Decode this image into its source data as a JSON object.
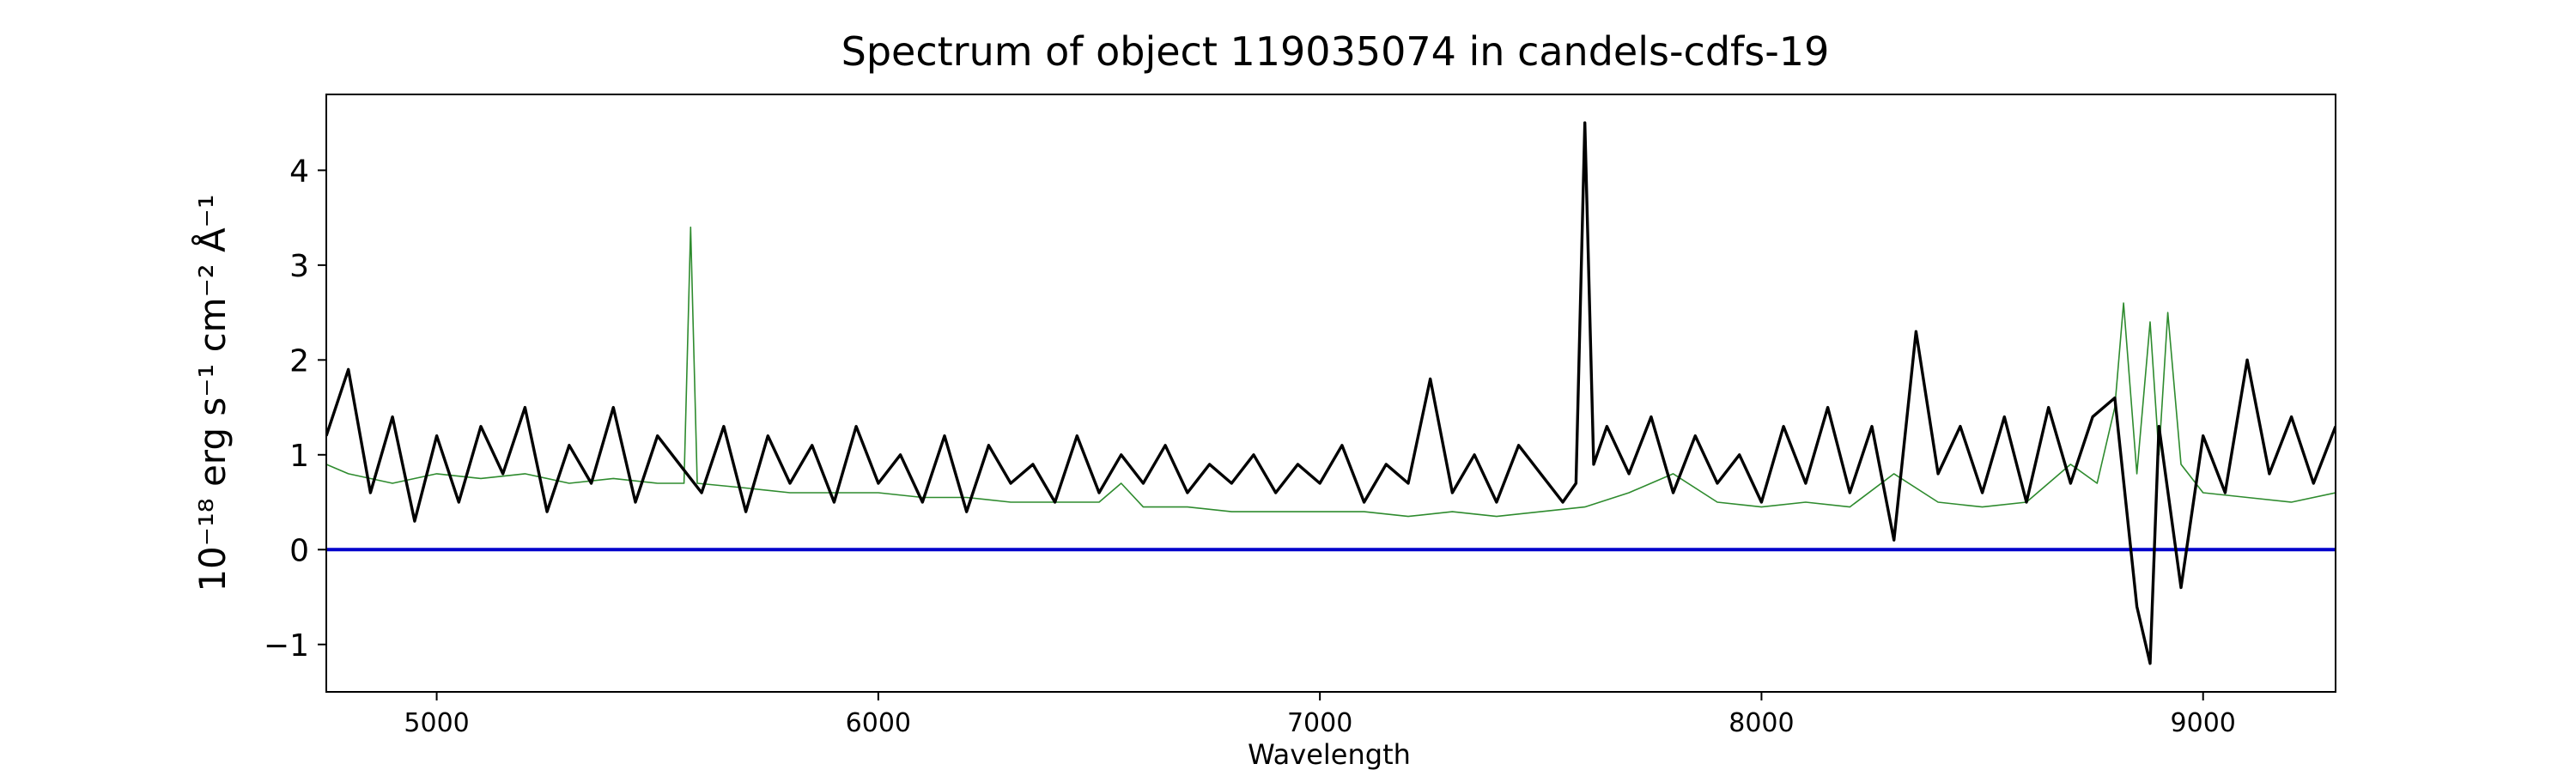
{
  "chart_data": {
    "type": "line",
    "title": "Spectrum of object 119035074 in candels-cdfs-19",
    "xlabel": "Wavelength",
    "ylabel": "10⁻¹⁸ erg s⁻¹ cm⁻² Å⁻¹",
    "xlim": [
      4750,
      9300
    ],
    "ylim": [
      -1.5,
      4.8
    ],
    "xticks": [
      5000,
      6000,
      7000,
      8000,
      9000
    ],
    "yticks": [
      -1,
      0,
      1,
      2,
      3,
      4
    ],
    "grid": false,
    "colors": {
      "flux": "#000000",
      "error": "#2e8b2e",
      "zero": "#0000cc"
    },
    "series": [
      {
        "key": "flux",
        "x": [
          4750,
          4800,
          4850,
          4900,
          4950,
          5000,
          5050,
          5100,
          5150,
          5200,
          5250,
          5300,
          5350,
          5400,
          5450,
          5500,
          5550,
          5600,
          5650,
          5700,
          5750,
          5800,
          5850,
          5900,
          5950,
          6000,
          6050,
          6100,
          6150,
          6200,
          6250,
          6300,
          6350,
          6400,
          6450,
          6500,
          6550,
          6600,
          6650,
          6700,
          6750,
          6800,
          6850,
          6900,
          6950,
          7000,
          7050,
          7100,
          7150,
          7200,
          7250,
          7300,
          7350,
          7400,
          7450,
          7500,
          7550,
          7580,
          7600,
          7620,
          7650,
          7700,
          7750,
          7800,
          7850,
          7900,
          7950,
          8000,
          8050,
          8100,
          8150,
          8200,
          8250,
          8300,
          8350,
          8400,
          8450,
          8500,
          8550,
          8600,
          8650,
          8700,
          8750,
          8800,
          8850,
          8880,
          8900,
          8950,
          9000,
          9050,
          9100,
          9150,
          9200,
          9250,
          9300
        ],
        "y": [
          1.2,
          1.9,
          0.6,
          1.4,
          0.3,
          1.2,
          0.5,
          1.3,
          0.8,
          1.5,
          0.4,
          1.1,
          0.7,
          1.5,
          0.5,
          1.2,
          0.9,
          0.6,
          1.3,
          0.4,
          1.2,
          0.7,
          1.1,
          0.5,
          1.3,
          0.7,
          1.0,
          0.5,
          1.2,
          0.4,
          1.1,
          0.7,
          0.9,
          0.5,
          1.2,
          0.6,
          1.0,
          0.7,
          1.1,
          0.6,
          0.9,
          0.7,
          1.0,
          0.6,
          0.9,
          0.7,
          1.1,
          0.5,
          0.9,
          0.7,
          1.8,
          0.6,
          1.0,
          0.5,
          1.1,
          0.8,
          0.5,
          0.7,
          4.5,
          0.9,
          1.3,
          0.8,
          1.4,
          0.6,
          1.2,
          0.7,
          1.0,
          0.5,
          1.3,
          0.7,
          1.5,
          0.6,
          1.3,
          0.1,
          2.3,
          0.8,
          1.3,
          0.6,
          1.4,
          0.5,
          1.5,
          0.7,
          1.4,
          1.6,
          -0.6,
          -1.2,
          1.3,
          -0.4,
          1.2,
          0.6,
          2.0,
          0.8,
          1.4,
          0.7,
          1.3
        ]
      },
      {
        "key": "error",
        "x": [
          4750,
          4800,
          4900,
          5000,
          5100,
          5200,
          5300,
          5400,
          5500,
          5560,
          5575,
          5590,
          5700,
          5800,
          5900,
          6000,
          6100,
          6200,
          6300,
          6400,
          6500,
          6550,
          6600,
          6700,
          6800,
          6900,
          7000,
          7100,
          7200,
          7300,
          7400,
          7500,
          7600,
          7700,
          7800,
          7900,
          8000,
          8100,
          8200,
          8300,
          8400,
          8500,
          8600,
          8700,
          8760,
          8800,
          8820,
          8850,
          8880,
          8900,
          8920,
          8950,
          9000,
          9100,
          9200,
          9300
        ],
        "y": [
          0.9,
          0.8,
          0.7,
          0.8,
          0.75,
          0.8,
          0.7,
          0.75,
          0.7,
          0.7,
          3.4,
          0.7,
          0.65,
          0.6,
          0.6,
          0.6,
          0.55,
          0.55,
          0.5,
          0.5,
          0.5,
          0.7,
          0.45,
          0.45,
          0.4,
          0.4,
          0.4,
          0.4,
          0.35,
          0.4,
          0.35,
          0.4,
          0.45,
          0.6,
          0.8,
          0.5,
          0.45,
          0.5,
          0.45,
          0.8,
          0.5,
          0.45,
          0.5,
          0.9,
          0.7,
          1.5,
          2.6,
          0.8,
          2.4,
          1.0,
          2.5,
          0.9,
          0.6,
          0.55,
          0.5,
          0.6
        ]
      },
      {
        "key": "zero",
        "x": [
          4750,
          9300
        ],
        "y": [
          0,
          0
        ]
      }
    ]
  }
}
